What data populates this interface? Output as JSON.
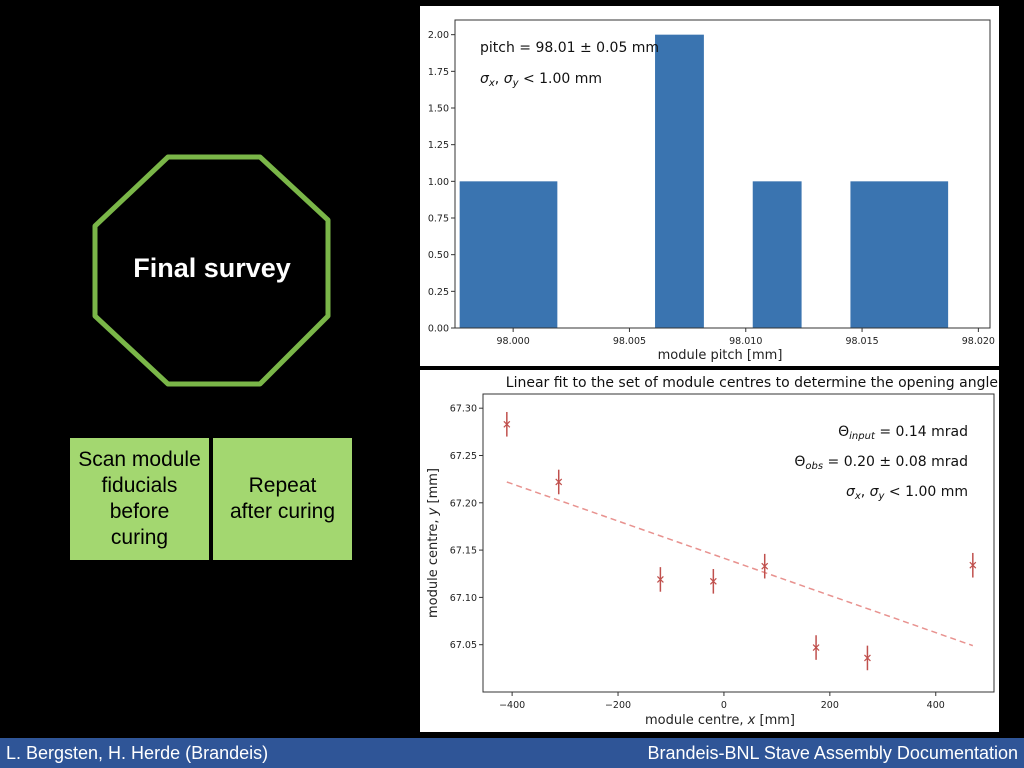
{
  "slide": {
    "octagon_title": "Final survey",
    "box_scan": "Scan module\nfiducials\nbefore\ncuring",
    "box_repeat": "Repeat\nafter curing",
    "accent_green": "#a3d770",
    "octagon_stroke": "#7ab648"
  },
  "footer": {
    "left": "L. Bergsten, H. Herde (Brandeis)",
    "right": "Brandeis-BNL Stave Assembly Documentation",
    "color": "#2f5597"
  },
  "chart_data": [
    {
      "type": "bar",
      "title": "",
      "xlabel": "module pitch [mm]",
      "ylabel": "",
      "xlim": [
        97.9975,
        98.0205
      ],
      "ylim": [
        0,
        2.1
      ],
      "bar_color": "#3a74b0",
      "bins": [
        {
          "x0": 97.9977,
          "x1": 98.0019,
          "value": 1
        },
        {
          "x0": 98.0019,
          "x1": 98.0061,
          "value": 0
        },
        {
          "x0": 98.0061,
          "x1": 98.0082,
          "value": 2
        },
        {
          "x0": 98.0082,
          "x1": 98.0103,
          "value": 0
        },
        {
          "x0": 98.0103,
          "x1": 98.0124,
          "value": 1
        },
        {
          "x0": 98.0124,
          "x1": 98.0145,
          "value": 0
        },
        {
          "x0": 98.0145,
          "x1": 98.0187,
          "value": 1
        }
      ],
      "xticks": [
        "98.000",
        "98.005",
        "98.010",
        "98.015",
        "98.020"
      ],
      "xtick_values": [
        98.0,
        98.005,
        98.01,
        98.015,
        98.02
      ],
      "yticks": [
        "0.00",
        "0.25",
        "0.50",
        "0.75",
        "1.00",
        "1.25",
        "1.50",
        "1.75",
        "2.00"
      ],
      "ytick_values": [
        0,
        0.25,
        0.5,
        0.75,
        1.0,
        1.25,
        1.5,
        1.75,
        2.0
      ],
      "annotations": [
        "pitch = 98.01 ± 0.05 mm",
        "σx, σy < 1.00 mm"
      ]
    },
    {
      "type": "scatter",
      "title": "Linear fit to the set of module centres to determine the opening angle",
      "xlabel": "module centre, x [mm]",
      "ylabel": "module centre, y [mm]",
      "xlim": [
        -455,
        510
      ],
      "ylim": [
        67.0,
        67.315
      ],
      "marker_color": "#c0504d",
      "fit_color": "#e8928f",
      "points": [
        {
          "x": -410,
          "y": 67.283,
          "err": 0.013
        },
        {
          "x": -312,
          "y": 67.222,
          "err": 0.013
        },
        {
          "x": -120,
          "y": 67.119,
          "err": 0.013
        },
        {
          "x": -20,
          "y": 67.117,
          "err": 0.013
        },
        {
          "x": 77,
          "y": 67.133,
          "err": 0.013
        },
        {
          "x": 174,
          "y": 67.047,
          "err": 0.013
        },
        {
          "x": 271,
          "y": 67.036,
          "err": 0.013
        },
        {
          "x": 470,
          "y": 67.134,
          "err": 0.013
        }
      ],
      "fit_line": {
        "x": [
          -410,
          470
        ],
        "y": [
          67.222,
          67.049
        ]
      },
      "xticks": [
        "−400",
        "−200",
        "0",
        "200",
        "400"
      ],
      "xtick_values": [
        -400,
        -200,
        0,
        200,
        400
      ],
      "yticks": [
        "67.05",
        "67.10",
        "67.15",
        "67.20",
        "67.25",
        "67.30"
      ],
      "ytick_values": [
        67.05,
        67.1,
        67.15,
        67.2,
        67.25,
        67.3
      ],
      "annotations": [
        "Θinput = 0.14 mrad",
        "Θobs = 0.20 ± 0.08 mrad",
        "σx, σy < 1.00 mm"
      ]
    }
  ]
}
